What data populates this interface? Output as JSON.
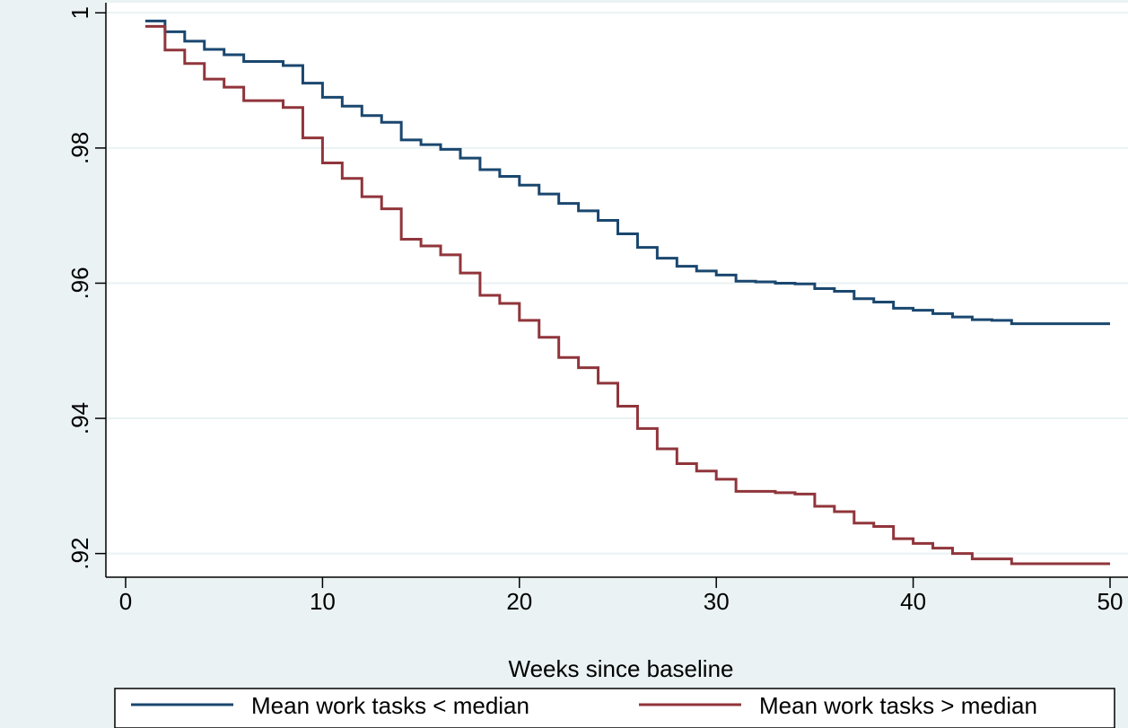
{
  "chart_data": {
    "type": "line",
    "step": true,
    "title": "",
    "xlabel": "Weeks since baseline",
    "ylabel": "",
    "xlim": [
      0,
      50
    ],
    "ylim": [
      0.9165,
      1.0015
    ],
    "xticks": [
      0,
      10,
      20,
      30,
      40,
      50
    ],
    "xtick_labels": [
      "0",
      "10",
      "20",
      "30",
      "40",
      "50"
    ],
    "yticks": [
      0.92,
      0.94,
      0.96,
      0.98,
      1.0
    ],
    "ytick_labels": [
      ".92",
      ".94",
      ".96",
      ".98",
      "1"
    ],
    "grid": "horizontal",
    "legend_position": "bottom",
    "colors": {
      "background": "#eaf2f3",
      "plot_background": "#ffffff",
      "grid": "#eaf2f3",
      "series_low": "#1a476f",
      "series_high": "#90353b"
    },
    "series": [
      {
        "name": "Mean work tasks < median",
        "color": "#1a476f",
        "x": [
          1,
          2,
          3,
          4,
          5,
          6,
          7,
          8,
          9,
          10,
          11,
          12,
          13,
          14,
          15,
          16,
          17,
          18,
          19,
          20,
          21,
          22,
          23,
          24,
          25,
          26,
          27,
          28,
          29,
          30,
          31,
          32,
          33,
          34,
          35,
          36,
          37,
          38,
          39,
          40,
          41,
          42,
          43,
          44,
          45,
          46,
          47,
          48,
          49,
          50
        ],
        "y": [
          0.9988,
          0.9972,
          0.9958,
          0.9946,
          0.9938,
          0.9928,
          0.9928,
          0.9922,
          0.9896,
          0.9875,
          0.9862,
          0.9848,
          0.9838,
          0.9812,
          0.9805,
          0.9798,
          0.9785,
          0.9768,
          0.9758,
          0.9745,
          0.9732,
          0.9718,
          0.9707,
          0.9693,
          0.9673,
          0.9653,
          0.9637,
          0.9625,
          0.9618,
          0.9612,
          0.9603,
          0.9602,
          0.96,
          0.9599,
          0.9592,
          0.9588,
          0.9577,
          0.9572,
          0.9563,
          0.956,
          0.9555,
          0.955,
          0.9546,
          0.9545,
          0.954,
          0.954,
          0.954,
          0.954,
          0.954,
          0.954
        ]
      },
      {
        "name": "Mean work tasks > median",
        "color": "#90353b",
        "x": [
          1,
          2,
          3,
          4,
          5,
          6,
          7,
          8,
          9,
          10,
          11,
          12,
          13,
          14,
          15,
          16,
          17,
          18,
          19,
          20,
          21,
          22,
          23,
          24,
          25,
          26,
          27,
          28,
          29,
          30,
          31,
          32,
          33,
          34,
          35,
          36,
          37,
          38,
          39,
          40,
          41,
          42,
          43,
          44,
          45,
          46,
          47,
          48,
          49,
          50
        ],
        "y": [
          0.998,
          0.9945,
          0.9925,
          0.9902,
          0.989,
          0.987,
          0.987,
          0.986,
          0.9815,
          0.9778,
          0.9755,
          0.9728,
          0.971,
          0.9665,
          0.9655,
          0.9642,
          0.9615,
          0.9582,
          0.957,
          0.9545,
          0.952,
          0.949,
          0.9475,
          0.9452,
          0.9418,
          0.9385,
          0.9355,
          0.9333,
          0.9322,
          0.931,
          0.9292,
          0.9292,
          0.929,
          0.9288,
          0.927,
          0.9262,
          0.9245,
          0.924,
          0.9222,
          0.9215,
          0.9208,
          0.92,
          0.9192,
          0.9192,
          0.9185,
          0.9185,
          0.9185,
          0.9185,
          0.9185,
          0.9185
        ]
      }
    ]
  }
}
